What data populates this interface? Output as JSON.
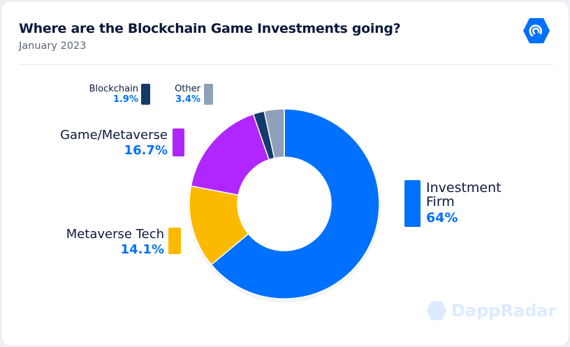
{
  "header": {
    "title": "Where are the Blockchain Game Investments going?",
    "subtitle": "January 2023"
  },
  "watermark": "DappRadar",
  "chart_data": {
    "type": "pie",
    "donut": true,
    "title": "Where are the Blockchain Game Investments going?",
    "subtitle": "January 2023",
    "slices": [
      {
        "label": "Investment Firm",
        "value": 64,
        "display": "64%",
        "color": "#0070ff"
      },
      {
        "label": "Metaverse Tech",
        "value": 14.1,
        "display": "14.1%",
        "color": "#fbb900"
      },
      {
        "label": "Game/Metaverse",
        "value": 16.7,
        "display": "16.7%",
        "color": "#b026ff"
      },
      {
        "label": "Blockchain",
        "value": 1.9,
        "display": "1.9%",
        "color": "#143a6b"
      },
      {
        "label": "Other",
        "value": 3.4,
        "display": "3.4%",
        "color": "#8fa0b8"
      }
    ]
  }
}
